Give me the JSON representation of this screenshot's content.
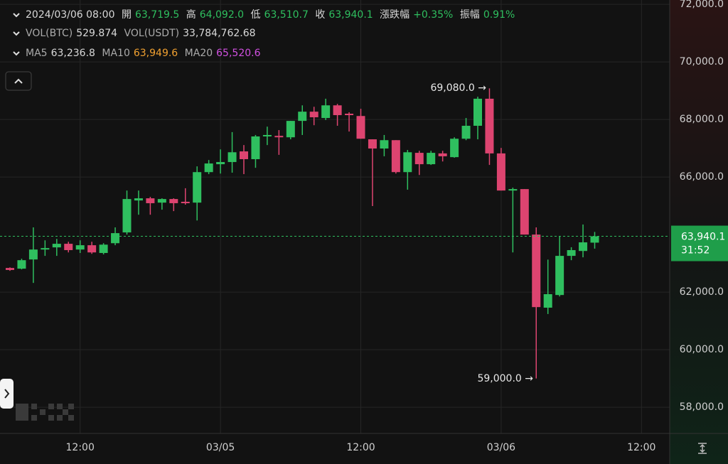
{
  "info": {
    "datetime": "2024/03/06 08:00",
    "open_label": "開",
    "open": "63,719.5",
    "high_label": "高",
    "high": "64,092.0",
    "low_label": "低",
    "low": "63,510.7",
    "close_label": "收",
    "close": "63,940.1",
    "change_label": "漲跌幅",
    "change": "+0.35%",
    "amplitude_label": "振幅",
    "amplitude": "0.91%",
    "vol_btc_label": "VOL(BTC)",
    "vol_btc": "529.874",
    "vol_usdt_label": "VOL(USDT)",
    "vol_usdt": "33,784,762.68",
    "ma5_label": "MA5",
    "ma5": "63,236.8",
    "ma10_label": "MA10",
    "ma10": "63,949.6",
    "ma20_label": "MA20",
    "ma20": "65,520.6"
  },
  "chart_data": {
    "type": "candlestick",
    "categories": [
      null,
      null,
      null,
      null,
      null,
      null,
      "12:00",
      null,
      null,
      null,
      null,
      null,
      null,
      null,
      null,
      null,
      null,
      null,
      "03/05",
      null,
      null,
      null,
      null,
      null,
      null,
      null,
      null,
      null,
      null,
      null,
      "12:00",
      null,
      null,
      null,
      null,
      null,
      null,
      null,
      null,
      null,
      null,
      null,
      "03/06",
      null,
      null,
      null,
      null,
      null,
      null,
      null,
      null,
      null,
      null,
      null,
      "12:00",
      null,
      null
    ],
    "open": [
      62840,
      62815,
      63135,
      63480,
      63555,
      63680,
      63480,
      63630,
      63360,
      63700,
      64075,
      65185,
      65260,
      65110,
      65235,
      65140,
      65110,
      66170,
      66445,
      66520,
      66890,
      66620,
      67410,
      67430,
      67380,
      67950,
      68270,
      68050,
      68490,
      68200,
      68120,
      67310,
      66990,
      67280,
      66170,
      66840,
      66445,
      66820,
      66690,
      67330,
      67780,
      68720,
      66820,
      65530,
      65580,
      64000,
      61460,
      61900,
      63260,
      63430,
      63719.5,
      null,
      null,
      null,
      null,
      null,
      null
    ],
    "high": [
      62860,
      63160,
      64250,
      63800,
      63850,
      63750,
      63800,
      63750,
      63700,
      64250,
      65530,
      65530,
      65310,
      65260,
      65260,
      65610,
      66370,
      66590,
      66960,
      67560,
      67110,
      67460,
      67750,
      67630,
      67950,
      68490,
      68440,
      68720,
      68540,
      68250,
      68370,
      67310,
      67460,
      67280,
      66940,
      66910,
      66910,
      66910,
      67380,
      68050,
      68790,
      69080,
      67010,
      65630,
      65580,
      64250,
      63130,
      63950,
      63560,
      64350,
      64092,
      null,
      null,
      null,
      null,
      null,
      null
    ],
    "low": [
      62740,
      62790,
      62320,
      63260,
      63260,
      63380,
      63360,
      63330,
      63310,
      63630,
      64000,
      64690,
      64690,
      64865,
      64815,
      65040,
      64490,
      66100,
      66120,
      66150,
      66100,
      66320,
      67110,
      66770,
      67310,
      67460,
      67800,
      67980,
      67780,
      67580,
      67330,
      64990,
      66720,
      66120,
      65560,
      66070,
      66420,
      66540,
      66670,
      67280,
      67310,
      66420,
      65530,
      63380,
      64000,
      59000,
      61240,
      61850,
      63110,
      63210,
      63510.7,
      null,
      null,
      null,
      null,
      null,
      null
    ],
    "close": [
      62770,
      63110,
      63480,
      63530,
      63680,
      63460,
      63630,
      63380,
      63650,
      64050,
      65235,
      65260,
      65090,
      65235,
      65090,
      65090,
      66170,
      66470,
      66520,
      66860,
      66620,
      67410,
      67460,
      67380,
      67950,
      68270,
      68075,
      68490,
      68150,
      68150,
      67330,
      66990,
      67280,
      66170,
      66860,
      66445,
      66840,
      66720,
      67330,
      67780,
      68720,
      66820,
      65530,
      65580,
      64000,
      61480,
      61930,
      63260,
      63460,
      63730,
      63940.1,
      null,
      null,
      null,
      null,
      null,
      null
    ],
    "up_color": "#2fbf5f",
    "down_color": "#dd4470",
    "ylim": [
      57090,
      72150
    ],
    "yticks": [
      {
        "value": 58000,
        "label": "58,000.0"
      },
      {
        "value": 60000,
        "label": "60,000.0"
      },
      {
        "value": 62000,
        "label": "62,000.0"
      },
      {
        "value": 66000,
        "label": "66,000.0"
      },
      {
        "value": 68000,
        "label": "68,000.0"
      },
      {
        "value": 70000,
        "label": "70,000.0"
      },
      {
        "value": 72000,
        "label": "72,000.0"
      }
    ],
    "grid": true,
    "last_price": {
      "value": 63940.1,
      "label": "63,940.1",
      "countdown": "31:52"
    },
    "annotations": [
      "69,080.0 →",
      "59,000.0 →"
    ]
  }
}
